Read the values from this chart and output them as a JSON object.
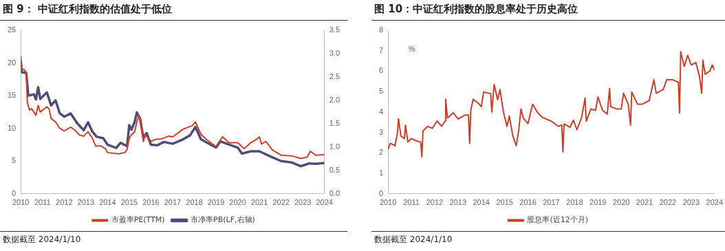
{
  "chart_data": [
    {
      "type": "line",
      "title": "图 9：  中证红利指数的估值处于低位",
      "xlim": [
        2010,
        2024
      ],
      "xticks": [
        2010,
        2011,
        2012,
        2013,
        2014,
        2015,
        2016,
        2017,
        2018,
        2019,
        2020,
        2021,
        2022,
        2023,
        2024
      ],
      "ylim": [
        0,
        25
      ],
      "yticks": [
        0,
        5,
        10,
        15,
        20,
        25
      ],
      "y2lim": [
        0,
        3.5
      ],
      "y2ticks": [
        {
          "value": 0,
          "label": "0.0"
        },
        {
          "value": 0.5,
          "label": "0.5"
        },
        {
          "value": 1,
          "label": "1.0"
        },
        {
          "value": 1.5,
          "label": "1.5"
        },
        {
          "value": 2,
          "label": "2.0"
        },
        {
          "value": 2.5,
          "label": "2.5"
        },
        {
          "value": 3,
          "label": "3.0"
        },
        {
          "value": 3.5,
          "label": "3.5"
        }
      ],
      "grid": false,
      "legend": "bottom",
      "marker": "none",
      "line_style": "solid",
      "annotations": [
        "数据截至 2024/1/10"
      ],
      "series": [
        {
          "name": "市盈率PE(TTM)",
          "color": "#c8402a",
          "x": [
            2010.0,
            2010.05,
            2010.15,
            2010.25,
            2010.3,
            2010.4,
            2010.5,
            2010.7,
            2010.8,
            2010.9,
            2011.2,
            2011.3,
            2011.4,
            2011.6,
            2011.8,
            2012.0,
            2012.3,
            2012.5,
            2012.7,
            2012.9,
            2013.1,
            2013.3,
            2013.45,
            2013.7,
            2013.9,
            2014.0,
            2014.5,
            2014.8,
            2014.9,
            2015.0,
            2015.1,
            2015.25,
            2015.35,
            2015.45,
            2015.55,
            2015.65,
            2015.75,
            2016.0,
            2016.2,
            2016.5,
            2016.8,
            2017.0,
            2017.5,
            2017.9,
            2018.05,
            2018.3,
            2018.6,
            2019.0,
            2019.3,
            2019.6,
            2020.0,
            2020.3,
            2020.6,
            2020.9,
            2021.0,
            2021.1,
            2021.3,
            2021.6,
            2022.0,
            2022.5,
            2022.9,
            2023.2,
            2023.35,
            2023.6,
            2024.0
          ],
          "values": [
            21,
            19,
            19,
            18.5,
            14,
            12.8,
            13,
            12,
            13.5,
            12.5,
            13.3,
            13,
            11.5,
            11,
            10,
            9.6,
            10.2,
            9.7,
            9.0,
            8.8,
            9.5,
            8.5,
            7.3,
            7.3,
            6.9,
            6.3,
            6.1,
            6.3,
            6.8,
            8.5,
            9.0,
            9.5,
            11,
            12,
            10.8,
            8.0,
            9,
            8.0,
            8.3,
            8.4,
            8.8,
            8.7,
            9.9,
            10.4,
            11.0,
            9.1,
            8.2,
            7.2,
            8.7,
            7.8,
            7.8,
            6.9,
            7.8,
            8.4,
            8.7,
            7.6,
            8.0,
            6.7,
            5.9,
            5.8,
            5.4,
            5.6,
            6.5,
            5.9,
            6.0
          ]
        },
        {
          "name": "市净率PB(LF,右轴)",
          "color": "#4f4c78",
          "axis": "y2",
          "x": [
            2010.0,
            2010.05,
            2010.25,
            2010.35,
            2010.6,
            2010.7,
            2010.8,
            2010.9,
            2011.2,
            2011.4,
            2011.6,
            2011.8,
            2012.0,
            2012.3,
            2012.6,
            2012.9,
            2013.1,
            2013.3,
            2013.5,
            2013.8,
            2014.0,
            2014.4,
            2014.6,
            2014.9,
            2015.0,
            2015.1,
            2015.25,
            2015.35,
            2015.5,
            2015.65,
            2015.8,
            2016.0,
            2016.3,
            2016.6,
            2017.0,
            2017.5,
            2017.8,
            2018.05,
            2018.3,
            2018.6,
            2019.0,
            2019.2,
            2019.5,
            2020.0,
            2020.2,
            2020.6,
            2021.0,
            2021.5,
            2022.0,
            2022.5,
            2022.9,
            2023.3,
            2023.6,
            2024.0
          ],
          "values": [
            2.84,
            2.6,
            2.59,
            2.1,
            2.13,
            2.02,
            2.28,
            2.03,
            2.17,
            1.89,
            2.0,
            1.72,
            1.65,
            1.72,
            1.51,
            1.36,
            1.53,
            1.33,
            1.22,
            1.19,
            1.05,
            0.98,
            1.09,
            1.02,
            1.47,
            1.37,
            1.54,
            1.74,
            1.61,
            1.2,
            1.3,
            1.05,
            1.04,
            1.11,
            1.07,
            1.17,
            1.25,
            1.43,
            1.17,
            1.09,
            0.99,
            1.12,
            1.07,
            0.99,
            0.86,
            0.91,
            0.91,
            0.8,
            0.7,
            0.67,
            0.59,
            0.65,
            0.64,
            0.66
          ]
        }
      ]
    },
    {
      "type": "line",
      "title": "图 10：中证红利指数的股息率处于历史高位",
      "ylabel": "%",
      "xlim": [
        2010,
        2024
      ],
      "xticks": [
        2010,
        2011,
        2012,
        2013,
        2014,
        2015,
        2016,
        2017,
        2018,
        2019,
        2020,
        2021,
        2022,
        2023,
        2024
      ],
      "ylim": [
        0,
        8
      ],
      "yticks": [
        0,
        1,
        2,
        3,
        4,
        5,
        6,
        7,
        8
      ],
      "grid": false,
      "legend": "bottom",
      "marker": "none",
      "line_style": "solid",
      "annotations": [
        "数据截至 2024/1/10"
      ],
      "series": [
        {
          "name": "股息率(近12个月)",
          "color": "#c8402a",
          "x": [
            2010.0,
            2010.1,
            2010.3,
            2010.4,
            2010.45,
            2010.55,
            2010.7,
            2010.75,
            2010.85,
            2011.0,
            2011.2,
            2011.4,
            2011.45,
            2011.5,
            2011.7,
            2011.9,
            2012.1,
            2012.3,
            2012.45,
            2012.47,
            2012.55,
            2012.8,
            2013.0,
            2013.3,
            2013.45,
            2013.5,
            2013.55,
            2013.65,
            2013.9,
            2014.0,
            2014.1,
            2014.4,
            2014.45,
            2014.55,
            2014.7,
            2014.8,
            2014.95,
            2015.1,
            2015.2,
            2015.35,
            2015.5,
            2015.6,
            2015.7,
            2015.8,
            2016.0,
            2016.2,
            2016.4,
            2016.6,
            2017.0,
            2017.3,
            2017.45,
            2017.5,
            2017.55,
            2017.8,
            2017.95,
            2018.1,
            2018.3,
            2018.45,
            2018.5,
            2018.7,
            2018.9,
            2019.0,
            2019.2,
            2019.4,
            2019.5,
            2019.55,
            2019.8,
            2020.0,
            2020.1,
            2020.3,
            2020.4,
            2020.45,
            2020.7,
            2020.9,
            2021.2,
            2021.4,
            2021.5,
            2021.8,
            2021.95,
            2022.2,
            2022.45,
            2022.5,
            2022.55,
            2022.7,
            2022.85,
            2023.0,
            2023.2,
            2023.35,
            2023.45,
            2023.5,
            2023.6,
            2023.8,
            2023.9,
            2024.0
          ],
          "values": [
            2.17,
            2.47,
            2.35,
            2.95,
            3.67,
            2.83,
            2.7,
            3.36,
            2.53,
            2.7,
            2.6,
            2.53,
            1.8,
            3.07,
            3.3,
            3.2,
            3.56,
            3.3,
            3.56,
            4.63,
            3.7,
            3.96,
            3.66,
            3.85,
            3.85,
            2.47,
            4.1,
            4.63,
            4.4,
            4.26,
            4.98,
            4.9,
            4.0,
            5.35,
            4.6,
            5.1,
            4.0,
            3.3,
            3.8,
            2.83,
            2.35,
            3.07,
            4.15,
            3.7,
            3.43,
            4.38,
            4.0,
            3.75,
            3.55,
            3.3,
            3.36,
            2.05,
            3.42,
            3.25,
            3.6,
            3.13,
            3.73,
            4.69,
            3.55,
            4.15,
            4.08,
            4.74,
            4.08,
            3.9,
            5.16,
            4.26,
            4.15,
            4.15,
            4.92,
            4.38,
            3.36,
            4.98,
            4.38,
            4.38,
            4.56,
            5.58,
            4.92,
            5.1,
            5.58,
            5.58,
            5.46,
            3.96,
            6.95,
            6.23,
            6.77,
            6.3,
            6.42,
            5.76,
            4.92,
            6.54,
            5.85,
            6.0,
            6.3,
            6.05
          ]
        }
      ]
    }
  ]
}
